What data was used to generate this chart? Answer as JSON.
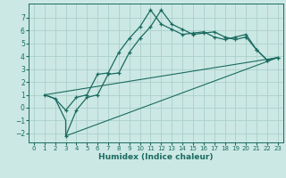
{
  "xlabel": "Humidex (Indice chaleur)",
  "background_color": "#cce8e4",
  "grid_color": "#aacfca",
  "line_color": "#1a6b60",
  "xlim": [
    -0.5,
    23.5
  ],
  "ylim": [
    -2.7,
    8.1
  ],
  "yticks": [
    -2,
    -1,
    0,
    1,
    2,
    3,
    4,
    5,
    6,
    7
  ],
  "xticks": [
    0,
    1,
    2,
    3,
    4,
    5,
    6,
    7,
    8,
    9,
    10,
    11,
    12,
    13,
    14,
    15,
    16,
    17,
    18,
    19,
    20,
    21,
    22,
    23
  ],
  "curve_main_x": [
    1,
    2,
    3,
    4,
    5,
    6,
    7,
    8,
    9,
    10,
    11,
    12,
    13,
    14,
    15,
    16,
    17,
    18,
    19,
    20,
    21,
    22,
    23
  ],
  "curve_main_y": [
    1.0,
    0.7,
    -0.2,
    0.8,
    1.0,
    2.6,
    2.7,
    4.3,
    5.4,
    6.3,
    7.6,
    6.5,
    6.1,
    5.7,
    5.8,
    5.9,
    5.5,
    5.3,
    5.5,
    5.7,
    4.5,
    3.7,
    3.9
  ],
  "curve_dip_x": [
    1,
    2,
    3,
    3,
    4,
    5,
    6,
    7,
    8,
    9,
    10,
    11,
    12,
    13,
    14,
    15,
    16,
    17,
    18,
    19,
    20,
    21,
    22,
    23
  ],
  "curve_dip_y": [
    1.0,
    0.7,
    -1.0,
    -2.2,
    -0.2,
    0.8,
    1.0,
    2.6,
    2.7,
    4.3,
    5.4,
    6.3,
    7.6,
    6.5,
    6.1,
    5.7,
    5.8,
    5.9,
    5.5,
    5.3,
    5.5,
    4.5,
    3.7,
    3.9
  ],
  "line1_x": [
    1,
    23
  ],
  "line1_y": [
    1.0,
    3.9
  ],
  "line2_x": [
    3,
    23
  ],
  "line2_y": [
    -2.2,
    3.9
  ]
}
